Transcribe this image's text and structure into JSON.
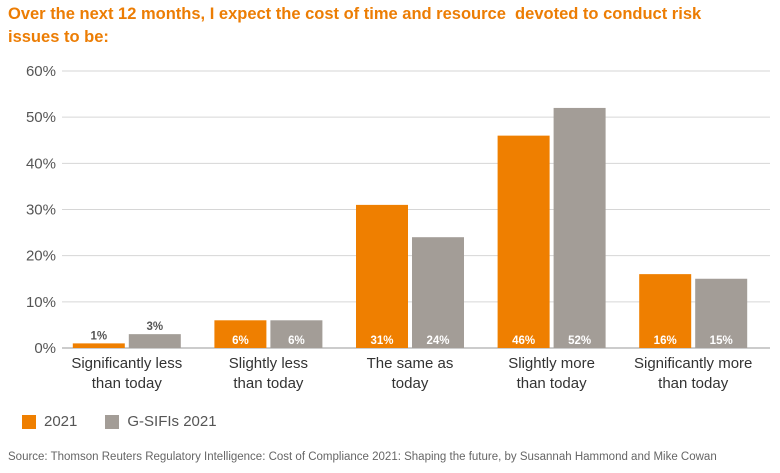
{
  "title": "Over the next 12 months, I expect the cost of time and resource  devoted to conduct risk issues to be:",
  "source": "Source: Thomson Reuters Regulatory Intelligence: Cost of Compliance 2021: Shaping the future, by Susannah Hammond and Mike Cowan",
  "colors": {
    "series_2021": "#ef7f00",
    "series_gsifi": "#a39d97",
    "accent": "#ec7d04"
  },
  "chart_data": {
    "type": "bar",
    "title": "Over the next 12 months, I expect the cost of time and resource  devoted to conduct risk issues to be:",
    "xlabel": "",
    "ylabel": "",
    "ylim": [
      0,
      60
    ],
    "yticks": [
      "0%",
      "10%",
      "20%",
      "30%",
      "40%",
      "50%",
      "60%"
    ],
    "grid": true,
    "legend_position": "bottom-left",
    "categories": [
      [
        "Significantly less",
        "than today"
      ],
      [
        "Slightly less",
        "than today"
      ],
      [
        "The same as",
        "today"
      ],
      [
        "Slightly more",
        "than today"
      ],
      [
        "Significantly more",
        "than today"
      ]
    ],
    "series": [
      {
        "name": "2021",
        "values": [
          1,
          6,
          31,
          46,
          16
        ],
        "labels": [
          "1%",
          "6%",
          "31%",
          "46%",
          "16%"
        ]
      },
      {
        "name": "G-SIFIs 2021",
        "values": [
          3,
          6,
          24,
          52,
          15
        ],
        "labels": [
          "3%",
          "6%",
          "24%",
          "52%",
          "15%"
        ]
      }
    ]
  }
}
